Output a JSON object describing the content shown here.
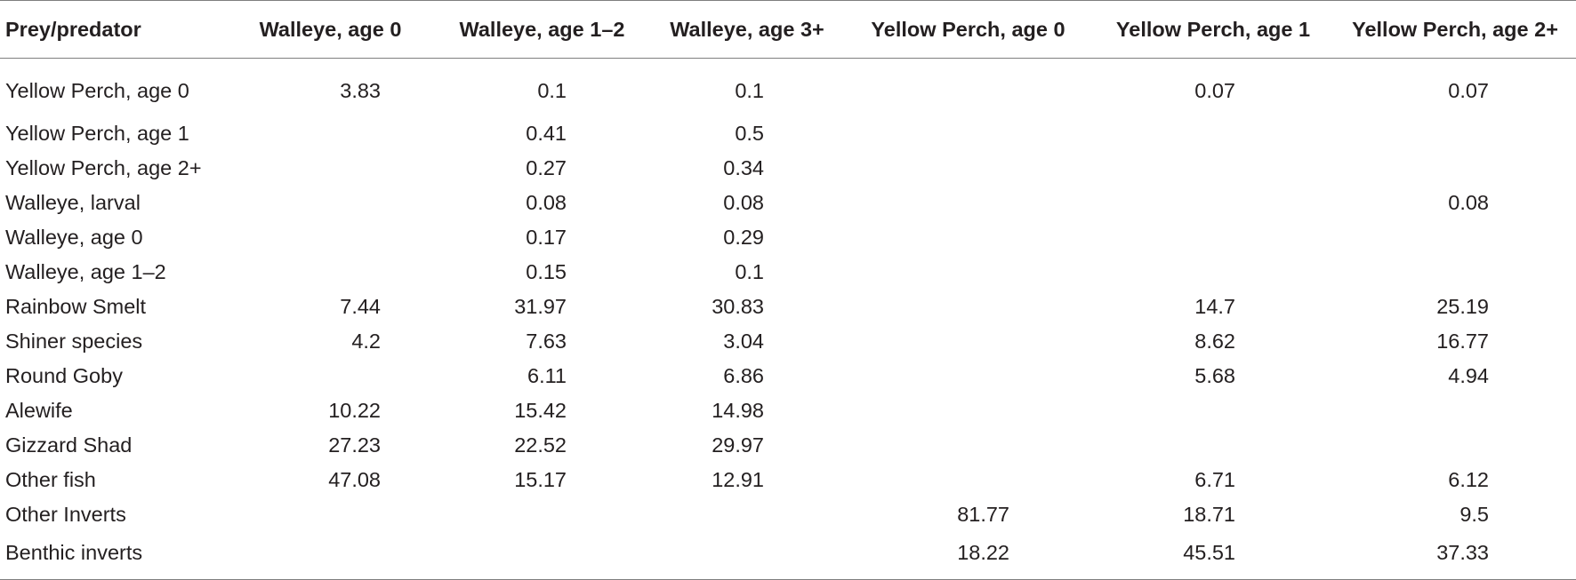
{
  "table": {
    "headers": [
      "Prey/predator",
      "Walleye, age 0",
      "Walleye, age 1–2",
      "Walleye, age 3+",
      "Yellow Perch, age 0",
      "Yellow Perch, age 1",
      "Yellow Perch, age 2+"
    ],
    "rows": [
      [
        "Yellow Perch, age 0",
        "3.83",
        "0.1",
        "0.1",
        "",
        "0.07",
        "0.07"
      ],
      [
        "Yellow Perch, age 1",
        "",
        "0.41",
        "0.5",
        "",
        "",
        ""
      ],
      [
        "Yellow Perch, age 2+",
        "",
        "0.27",
        "0.34",
        "",
        "",
        ""
      ],
      [
        "Walleye, larval",
        "",
        "0.08",
        "0.08",
        "",
        "",
        "0.08"
      ],
      [
        "Walleye, age 0",
        "",
        "0.17",
        "0.29",
        "",
        "",
        ""
      ],
      [
        "Walleye, age 1–2",
        "",
        "0.15",
        "0.1",
        "",
        "",
        ""
      ],
      [
        "Rainbow Smelt",
        "7.44",
        "31.97",
        "30.83",
        "",
        "14.7",
        "25.19"
      ],
      [
        "Shiner species",
        "4.2",
        "7.63",
        "3.04",
        "",
        "8.62",
        "16.77"
      ],
      [
        "Round Goby",
        "",
        "6.11",
        "6.86",
        "",
        "5.68",
        "4.94"
      ],
      [
        "Alewife",
        "10.22",
        "15.42",
        "14.98",
        "",
        "",
        ""
      ],
      [
        "Gizzard Shad",
        "27.23",
        "22.52",
        "29.97",
        "",
        "",
        ""
      ],
      [
        "Other fish",
        "47.08",
        "15.17",
        "12.91",
        "",
        "6.71",
        "6.12"
      ],
      [
        "Other Inverts",
        "",
        "",
        "",
        "81.77",
        "18.71",
        "9.5"
      ],
      [
        "Benthic inverts",
        "",
        "",
        "",
        "18.22",
        "45.51",
        "37.33"
      ]
    ]
  }
}
